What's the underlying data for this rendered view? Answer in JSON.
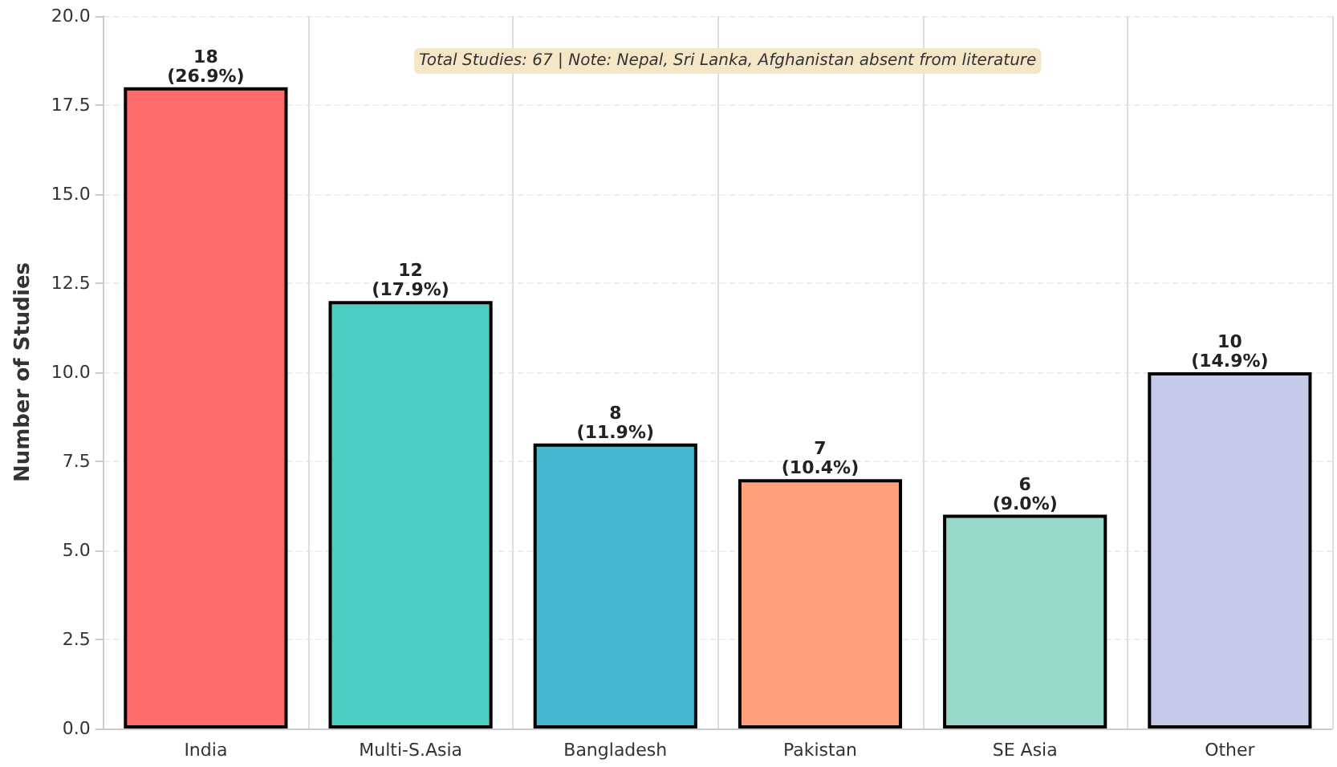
{
  "chart_data": {
    "type": "bar",
    "ylabel": "Number of Studies",
    "categories": [
      "India",
      "Multi-S.Asia",
      "Bangladesh",
      "Pakistan",
      "SE Asia",
      "Other"
    ],
    "values": [
      18,
      12,
      8,
      7,
      6,
      10
    ],
    "colors": [
      "#ff6b6b",
      "#4ecdc4",
      "#45b7d1",
      "#ffa07a",
      "#98d8c8",
      "#c5cae9"
    ],
    "value_labels": [
      "18\n(26.9%)",
      "12\n(17.9%)",
      "8\n(11.9%)",
      "7\n(10.4%)",
      "6\n(9.0%)",
      "10\n(14.9%)"
    ],
    "ylim": [
      0,
      20
    ],
    "yticks": [
      {
        "value": 0,
        "label": "0.0"
      },
      {
        "value": 2.5,
        "label": "2.5"
      },
      {
        "value": 5,
        "label": "5.0"
      },
      {
        "value": 7.5,
        "label": "7.5"
      },
      {
        "value": 10,
        "label": "10.0"
      },
      {
        "value": 12.5,
        "label": "12.5"
      },
      {
        "value": 15,
        "label": "15.0"
      },
      {
        "value": 17.5,
        "label": "17.5"
      },
      {
        "value": 20,
        "label": "20.0"
      }
    ],
    "annotations": [
      "Total Studies: 67 | Note: Nepal, Sri Lanka, Afghanistan absent from literature"
    ],
    "grid": true
  }
}
